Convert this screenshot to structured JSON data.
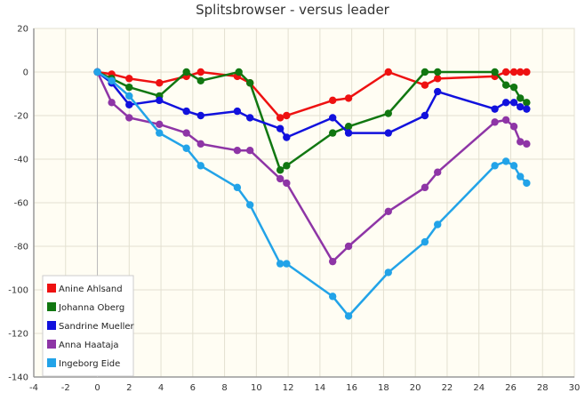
{
  "chart_data": {
    "type": "line",
    "title": "Splitsbrowser - versus leader",
    "xlim": [
      -4,
      30
    ],
    "ylim": [
      -140,
      20
    ],
    "x_ticks": [
      -4,
      -2,
      0,
      2,
      4,
      6,
      8,
      10,
      12,
      14,
      16,
      18,
      20,
      22,
      24,
      26,
      28,
      30
    ],
    "y_ticks": [
      20,
      0,
      -20,
      -40,
      -60,
      -80,
      -100,
      -120,
      -140
    ],
    "legend_position": "bottom-left",
    "grid": true,
    "background_color": "#fffdf3",
    "series": [
      {
        "name": "Anine Ahlsand",
        "color": "#ee1111",
        "points": [
          [
            0,
            0
          ],
          [
            0.9,
            -1
          ],
          [
            2,
            -3
          ],
          [
            3.9,
            -5
          ],
          [
            5.6,
            -2
          ],
          [
            6.5,
            0
          ],
          [
            8.8,
            -2
          ],
          [
            9.6,
            -5
          ],
          [
            11.5,
            -21
          ],
          [
            11.9,
            -20
          ],
          [
            14.8,
            -13
          ],
          [
            15.8,
            -12
          ],
          [
            18.3,
            0
          ],
          [
            20.6,
            -6
          ],
          [
            21.4,
            -3
          ],
          [
            25,
            -2
          ],
          [
            25.7,
            0
          ],
          [
            26.2,
            0
          ],
          [
            26.6,
            0
          ],
          [
            27,
            0
          ]
        ]
      },
      {
        "name": "Johanna Oberg",
        "color": "#117711",
        "points": [
          [
            0,
            0
          ],
          [
            0.9,
            -3
          ],
          [
            2,
            -7
          ],
          [
            3.9,
            -11
          ],
          [
            5.6,
            0
          ],
          [
            6.5,
            -4
          ],
          [
            8.9,
            0
          ],
          [
            9.6,
            -5
          ],
          [
            11.5,
            -45
          ],
          [
            11.9,
            -43
          ],
          [
            14.8,
            -28
          ],
          [
            15.8,
            -25
          ],
          [
            18.3,
            -19
          ],
          [
            20.6,
            0
          ],
          [
            21.4,
            0
          ],
          [
            25,
            0
          ],
          [
            25.7,
            -6
          ],
          [
            26.2,
            -7
          ],
          [
            26.6,
            -12
          ],
          [
            27,
            -14
          ]
        ]
      },
      {
        "name": "Sandrine Mueller",
        "color": "#1111dd",
        "points": [
          [
            0,
            0
          ],
          [
            0.9,
            -5
          ],
          [
            2,
            -15
          ],
          [
            3.9,
            -13
          ],
          [
            5.6,
            -18
          ],
          [
            6.5,
            -20
          ],
          [
            8.8,
            -18
          ],
          [
            9.6,
            -21
          ],
          [
            11.5,
            -26
          ],
          [
            11.9,
            -30
          ],
          [
            14.8,
            -21
          ],
          [
            15.8,
            -28
          ],
          [
            18.3,
            -28
          ],
          [
            20.6,
            -20
          ],
          [
            21.4,
            -9
          ],
          [
            25,
            -17
          ],
          [
            25.7,
            -14
          ],
          [
            26.2,
            -14
          ],
          [
            26.6,
            -16
          ],
          [
            27,
            -17
          ]
        ]
      },
      {
        "name": "Anna Haataja",
        "color": "#8e35a6",
        "points": [
          [
            0,
            0
          ],
          [
            0.9,
            -14
          ],
          [
            2,
            -21
          ],
          [
            3.9,
            -24
          ],
          [
            5.6,
            -28
          ],
          [
            6.5,
            -33
          ],
          [
            8.8,
            -36
          ],
          [
            9.6,
            -36
          ],
          [
            11.5,
            -49
          ],
          [
            11.9,
            -51
          ],
          [
            14.8,
            -87
          ],
          [
            15.8,
            -80
          ],
          [
            18.3,
            -64
          ],
          [
            20.6,
            -53
          ],
          [
            21.4,
            -46
          ],
          [
            25,
            -23
          ],
          [
            25.7,
            -22
          ],
          [
            26.2,
            -25
          ],
          [
            26.6,
            -32
          ],
          [
            27,
            -33
          ]
        ]
      },
      {
        "name": "Ingeborg Eide",
        "color": "#22a3e8",
        "points": [
          [
            0,
            0
          ],
          [
            0.9,
            -4
          ],
          [
            2,
            -11
          ],
          [
            3.9,
            -28
          ],
          [
            5.6,
            -35
          ],
          [
            6.5,
            -43
          ],
          [
            8.8,
            -53
          ],
          [
            9.6,
            -61
          ],
          [
            11.5,
            -88
          ],
          [
            11.9,
            -88
          ],
          [
            14.8,
            -103
          ],
          [
            15.8,
            -112
          ],
          [
            18.3,
            -92
          ],
          [
            20.6,
            -78
          ],
          [
            21.4,
            -70
          ],
          [
            25,
            -43
          ],
          [
            25.7,
            -41
          ],
          [
            26.2,
            -43
          ],
          [
            26.6,
            -48
          ],
          [
            27,
            -51
          ]
        ]
      }
    ]
  }
}
